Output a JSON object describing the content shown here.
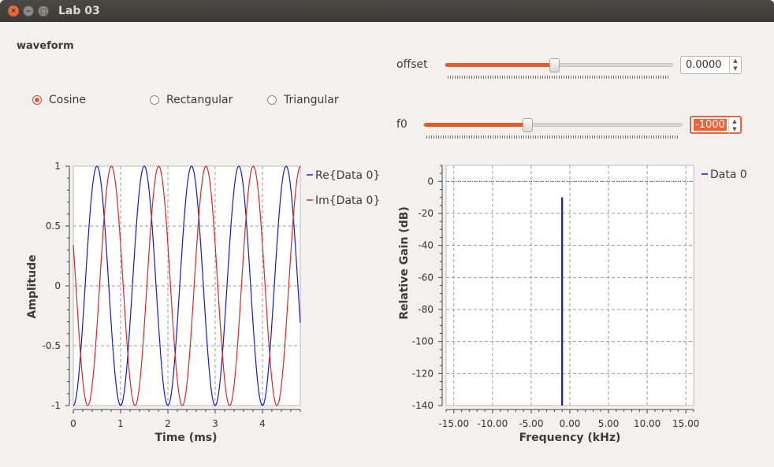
{
  "window": {
    "title": "Lab 03"
  },
  "panel": {
    "title": "waveform"
  },
  "waveform_options": [
    {
      "label": "Cosine",
      "checked": true
    },
    {
      "label": "Rectangular",
      "checked": false
    },
    {
      "label": "Triangular",
      "checked": false
    }
  ],
  "offset": {
    "label": "offset",
    "value": "0.0000",
    "fraction": 0.48
  },
  "f0": {
    "label": "f0",
    "value": "-1000",
    "fraction": 0.4
  },
  "colors": {
    "accent": "#e65a2c",
    "re": "#1a1ab8",
    "im": "#d22a2a",
    "data0": "#1a1aa0"
  },
  "chart_data": [
    {
      "type": "line",
      "xlabel": "Time (ms)",
      "ylabel": "Amplitude",
      "xlim": [
        0,
        4.8
      ],
      "ylim": [
        -1,
        1
      ],
      "x_ticks": [
        "0",
        "1",
        "2",
        "3",
        "4"
      ],
      "y_ticks": [
        "1",
        "0.5",
        "0",
        "-0.5",
        "-1"
      ],
      "series": [
        {
          "name": "Re{Data 0}",
          "color": "#1a1ab8",
          "frequency_khz": 1,
          "phase_deg": 180
        },
        {
          "name": "Im{Data 0}",
          "color": "#d22a2a",
          "frequency_khz": 1,
          "phase_deg": 70
        }
      ],
      "grid": true,
      "legend": "right"
    },
    {
      "type": "line",
      "xlabel": "Frequency (kHz)",
      "ylabel": "Relative Gain (dB)",
      "xlim": [
        -16,
        16
      ],
      "ylim": [
        -140,
        10
      ],
      "x_ticks": [
        "-15.00",
        "-10.00",
        "-5.00",
        "0.00",
        "5.00",
        "10.00",
        "15.00"
      ],
      "y_ticks": [
        "0",
        "-20",
        "-40",
        "-60",
        "-80",
        "-100",
        "-120",
        "-140"
      ],
      "series": [
        {
          "name": "Data 0",
          "color": "#1a1aa0",
          "peak_x": -1,
          "peak_y": -10,
          "floor_y": -140
        }
      ],
      "reference_line_y": 0,
      "grid": true,
      "legend": "right"
    }
  ]
}
